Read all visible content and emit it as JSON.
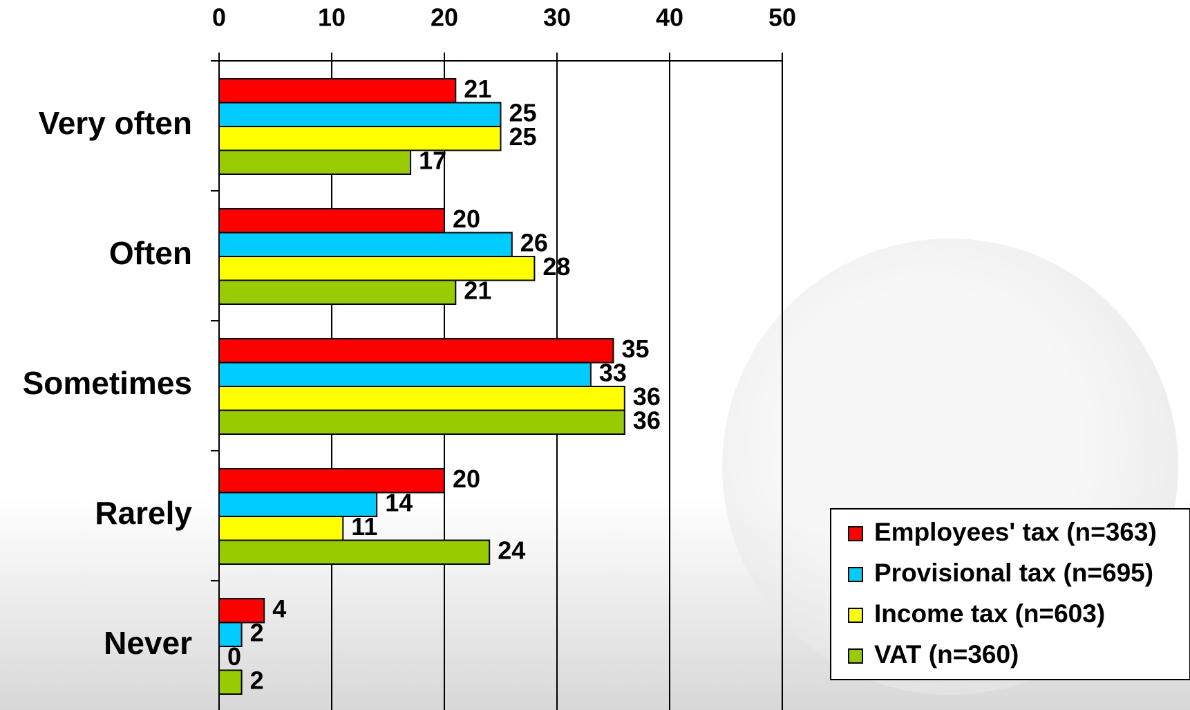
{
  "chart_data": {
    "type": "hbar",
    "categories": [
      "Very often",
      "Often",
      "Sometimes",
      "Rarely",
      "Never"
    ],
    "series": [
      {
        "name": "Employees' tax (n=363)",
        "color": "#ff0000",
        "values": [
          21,
          20,
          35,
          20,
          4
        ]
      },
      {
        "name": "Provisional tax (n=695)",
        "color": "#00ccff",
        "values": [
          25,
          26,
          33,
          14,
          2
        ]
      },
      {
        "name": "Income tax (n=603)",
        "color": "#ffff00",
        "values": [
          25,
          28,
          36,
          11,
          0
        ]
      },
      {
        "name": "VAT (n=360)",
        "color": "#99cc00",
        "values": [
          17,
          21,
          36,
          24,
          2
        ]
      }
    ],
    "xlim": [
      0,
      50
    ],
    "xticks": [
      0,
      10,
      20,
      30,
      40,
      50
    ],
    "grid": true,
    "legend": "lower right"
  }
}
